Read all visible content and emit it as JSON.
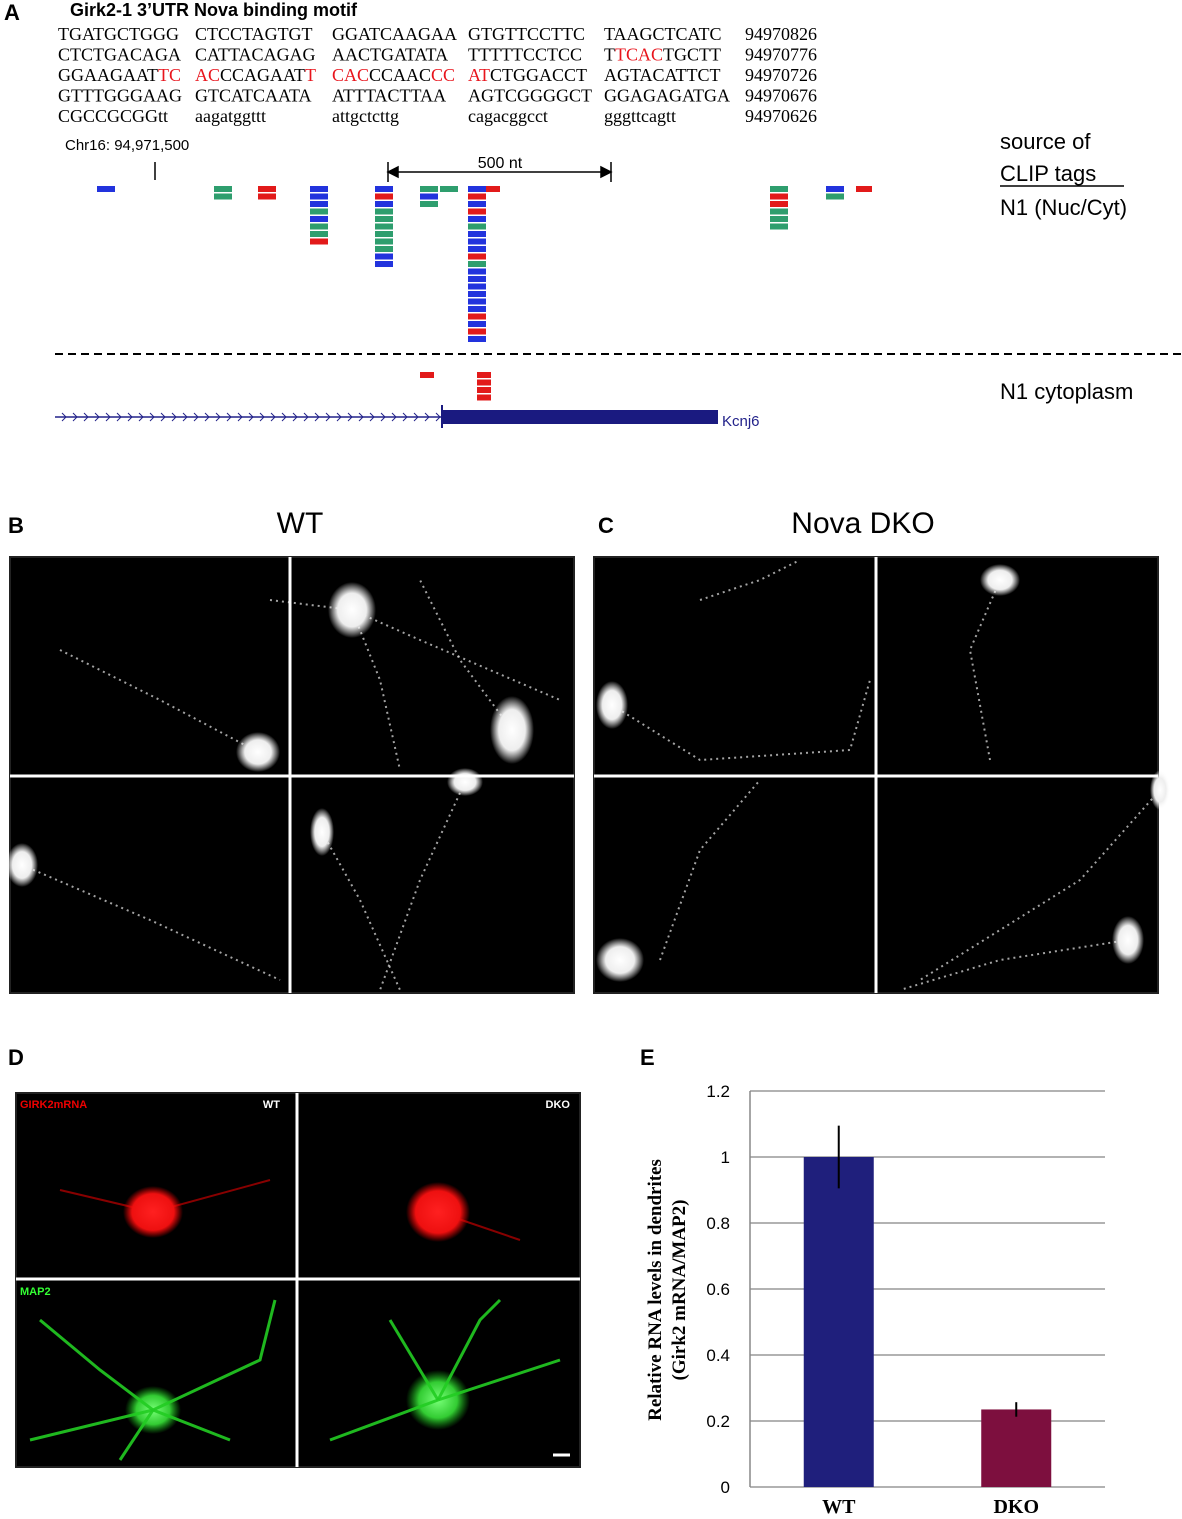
{
  "panels": {
    "a": "A",
    "b": "B",
    "c": "C",
    "d": "D",
    "e": "E"
  },
  "sequence": {
    "title": "Girk2-1 3’UTR Nova binding motif",
    "rows": [
      {
        "groups": [
          [
            "TGATGCTGGG"
          ],
          [
            "CTCCTAGTGT"
          ],
          [
            "GGATCAAGAA"
          ],
          [
            "GTGTTCCTTC"
          ],
          [
            "TAAGCTCATC"
          ]
        ],
        "position": "94970826"
      },
      {
        "groups": [
          [
            "CTCTGACAGA"
          ],
          [
            "CATTACAGAG"
          ],
          [
            "AACTGATATA"
          ],
          [
            "TTTTTCCTCC"
          ],
          [
            "T",
            {
              "text": "TCAC",
              "color": "#e8141c"
            },
            "TGCTT"
          ]
        ],
        "position": "94970776"
      },
      {
        "groups": [
          [
            "GGAAGAAT",
            {
              "text": "TC",
              "color": "#e8141c"
            }
          ],
          [
            {
              "text": "AC",
              "color": "#e8141c"
            },
            "CCAGAAT",
            {
              "text": "T",
              "color": "#e8141c"
            }
          ],
          [
            {
              "text": "CAC",
              "color": "#e8141c"
            },
            "CCAAC",
            {
              "text": "CC",
              "color": "#e8141c"
            }
          ],
          [
            {
              "text": "AT",
              "color": "#e8141c"
            },
            "CTGGACCT"
          ],
          [
            "AGTACATTCT"
          ]
        ],
        "position": "94970726"
      },
      {
        "groups": [
          [
            "GTTTGGGAAG"
          ],
          [
            "GTCATCAATA"
          ],
          [
            "ATTTACTTAA"
          ],
          [
            "AGTCGGGGCT"
          ],
          [
            "GGAGAGATGA"
          ]
        ],
        "position": "94970676"
      },
      {
        "groups": [
          [
            "CGCCGCGGtt"
          ],
          [
            "aagatggttt"
          ],
          [
            "attgctcttg"
          ],
          [
            "cagacggcct"
          ],
          [
            "gggttcagtt"
          ]
        ],
        "position": "94970626"
      }
    ]
  },
  "browser": {
    "coordinate": "Chr16:  94,971,500",
    "scale": "500 nt",
    "source_label": [
      "source of",
      "CLIP tags"
    ],
    "track_labels": [
      "N1 (Nuc/Cyt)",
      "N1 cytoplasm"
    ],
    "gene": "Kcnj6"
  },
  "panel_b": {
    "title": "WT"
  },
  "panel_c": {
    "title": "Nova DKO"
  },
  "panel_d": {
    "labels": [
      "GIRK2mRNA",
      "WT",
      "DKO",
      "MAP2"
    ]
  },
  "chart_data": {
    "type": "bar",
    "y_label": [
      "Relative RNA levels in dendrites",
      "(Girk2 mRNA/MAP2)"
    ],
    "categories": [
      "WT",
      "DKO"
    ],
    "values": [
      1,
      0.235
    ],
    "errors": [
      0.095,
      0.022
    ],
    "colors": [
      "#1f1f7c",
      "#7d0f3e"
    ],
    "ylim": [
      0,
      1.2
    ],
    "yticks": [
      0,
      0.2,
      0.4,
      0.6,
      0.8,
      1,
      1.2
    ],
    "grid": true
  }
}
